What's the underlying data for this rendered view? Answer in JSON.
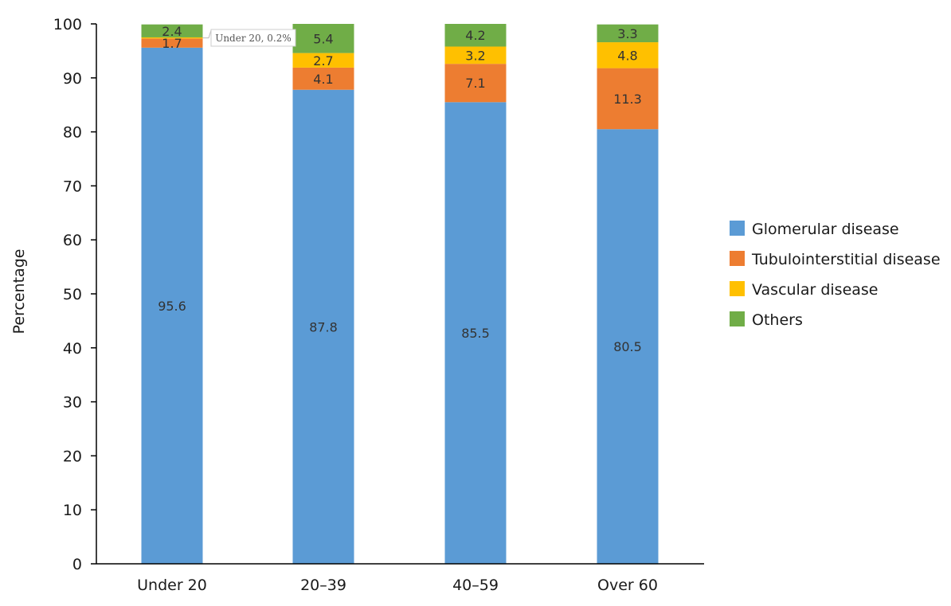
{
  "chart_data": {
    "type": "bar",
    "stacked": true,
    "categories": [
      "Under 20",
      "20–39",
      "40–59",
      "Over 60"
    ],
    "series": [
      {
        "name": "Glomerular disease",
        "color": "#5b9bd5",
        "values": [
          95.6,
          87.8,
          85.5,
          80.5
        ]
      },
      {
        "name": "Tubulointerstitial disease",
        "color": "#ed7d31",
        "values": [
          1.7,
          4.1,
          7.1,
          11.3
        ]
      },
      {
        "name": "Vascular disease",
        "color": "#ffc000",
        "values": [
          0.2,
          2.7,
          3.2,
          4.8
        ]
      },
      {
        "name": "Others",
        "color": "#70ad47",
        "values": [
          2.4,
          5.4,
          4.2,
          3.3
        ]
      }
    ],
    "data_labels": [
      [
        "95.6",
        "87.8",
        "85.5",
        "80.5"
      ],
      [
        "1.7",
        "4.1",
        "7.1",
        "11.3"
      ],
      [
        "",
        "2.7",
        "3.2",
        "4.8"
      ],
      [
        "2.4",
        "5.4",
        "4.2",
        "3.3"
      ]
    ],
    "callout": "Under 20, 0.2%",
    "ylabel": "Percentage",
    "xlabel": "",
    "ylim": [
      0,
      100
    ],
    "yticks": [
      "0",
      "10",
      "20",
      "30",
      "40",
      "50",
      "60",
      "70",
      "80",
      "90",
      "100"
    ],
    "grid": false,
    "legend_position": "right"
  }
}
